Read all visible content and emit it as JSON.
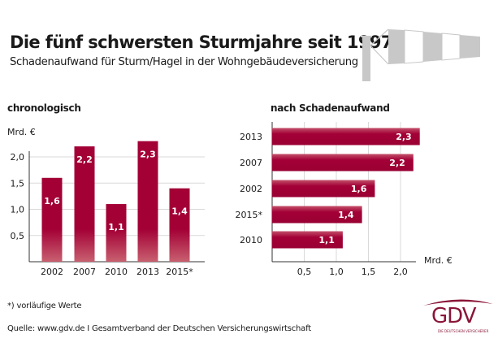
{
  "header": {
    "title": "Die fünf schwersten Sturmjahre seit 1997",
    "subtitle": "Schadenaufwand für Sturm/Hagel in der Wohngebäudeversicherung",
    "decoration": "windsock-icon"
  },
  "colors": {
    "bar": "#a30036",
    "bar_fade": "#c8606f",
    "grid": "#d9d9d9",
    "axis": "#333333",
    "windsock": "#c8c8c8",
    "logo": "#8a1538"
  },
  "chart_data": [
    {
      "type": "bar",
      "orientation": "vertical",
      "title": "chronologisch",
      "ylabel": "Mrd. €",
      "xlabel": "",
      "categories": [
        "2002",
        "2007",
        "2010",
        "2013",
        "2015*"
      ],
      "values": [
        1.6,
        2.2,
        1.1,
        2.3,
        1.4
      ],
      "value_labels": [
        "1,6",
        "2,2",
        "1,1",
        "2,3",
        "1,4"
      ],
      "ylim": [
        0,
        2.3
      ],
      "yticks": [
        0.5,
        1.0,
        1.5,
        2.0
      ],
      "ytick_labels": [
        "0,5",
        "1,0",
        "1,5",
        "2,0"
      ],
      "grid": true,
      "legend": "none"
    },
    {
      "type": "bar",
      "orientation": "horizontal",
      "title": "nach Schadenaufwand",
      "xlabel": "Mrd. €",
      "ylabel": "",
      "categories": [
        "2013",
        "2007",
        "2002",
        "2015*",
        "2010"
      ],
      "values": [
        2.3,
        2.2,
        1.6,
        1.4,
        1.1
      ],
      "value_labels": [
        "2,3",
        "2,2",
        "1,6",
        "1,4",
        "1,1"
      ],
      "xlim": [
        0,
        2.3
      ],
      "xticks": [
        0.5,
        1.0,
        1.5,
        2.0
      ],
      "xtick_labels": [
        "0,5",
        "1,0",
        "1,5",
        "2,0"
      ],
      "grid": true,
      "legend": "none"
    }
  ],
  "footer": {
    "footnote": "*) vorläufige Werte",
    "source": "Quelle: www.gdv.de I Gesamtverband der Deutschen Versicherungswirtschaft",
    "logo_text": "GDV",
    "logo_tagline": "DIE DEUTSCHEN VERSICHERER"
  }
}
